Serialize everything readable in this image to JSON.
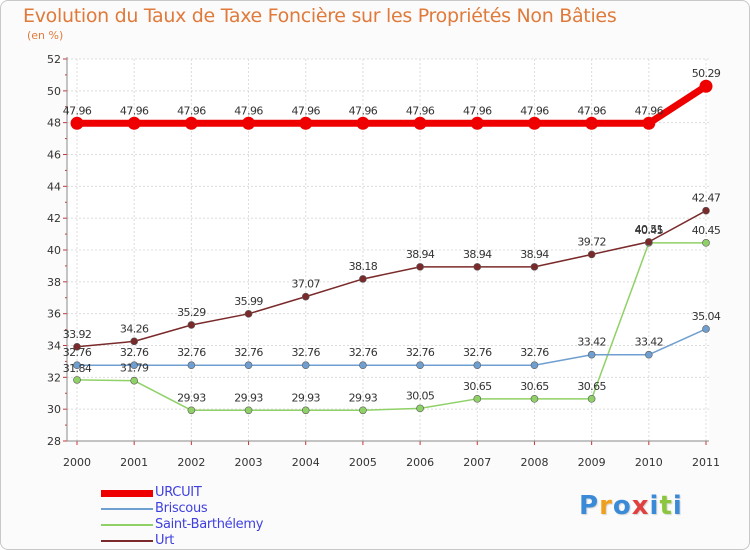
{
  "chart_data": {
    "type": "line",
    "title": "Evolution du Taux de Taxe Foncière sur les Propriétés Non Bâties",
    "ylabel": "(en %)",
    "xlabel": "",
    "categories": [
      "2000",
      "2001",
      "2002",
      "2003",
      "2004",
      "2005",
      "2006",
      "2007",
      "2008",
      "2009",
      "2010",
      "2011"
    ],
    "ylim": [
      28,
      52
    ],
    "yticks": [
      "28",
      "30",
      "32",
      "34",
      "36",
      "38",
      "40",
      "42",
      "44",
      "46",
      "48",
      "50",
      "52"
    ],
    "series": [
      {
        "name": "URCUIT",
        "color": "#ee0000",
        "values": [
          47.96,
          47.96,
          47.96,
          47.96,
          47.96,
          47.96,
          47.96,
          47.96,
          47.96,
          47.96,
          47.96,
          50.29
        ],
        "labels": [
          "47.96",
          "47.96",
          "47.96",
          "47.96",
          "47.96",
          "47.96",
          "47.96",
          "47.96",
          "47.96",
          "47.96",
          "47.96",
          "50.29"
        ]
      },
      {
        "name": "Briscous",
        "color": "#6f9fd0",
        "values": [
          32.76,
          32.76,
          32.76,
          32.76,
          32.76,
          32.76,
          32.76,
          32.76,
          32.76,
          33.42,
          33.42,
          35.04
        ],
        "labels": [
          "32.76",
          "32.76",
          "32.76",
          "32.76",
          "32.76",
          "32.76",
          "32.76",
          "32.76",
          "32.76",
          "33.42",
          "33.42",
          "35.04"
        ]
      },
      {
        "name": "Saint-Barthélemy",
        "color": "#8fd166",
        "values": [
          31.84,
          31.79,
          29.93,
          29.93,
          29.93,
          29.93,
          30.05,
          30.65,
          30.65,
          30.65,
          40.45,
          40.45
        ],
        "labels": [
          "31.84",
          "31.79",
          "29.93",
          "29.93",
          "29.93",
          "29.93",
          "30.05",
          "30.65",
          "30.65",
          "30.65",
          "40.45",
          "40.45"
        ]
      },
      {
        "name": "Urt",
        "color": "#7a2a2a",
        "values": [
          33.92,
          34.26,
          35.29,
          35.99,
          37.07,
          38.18,
          38.94,
          38.94,
          38.94,
          39.72,
          40.51,
          42.47
        ],
        "labels": [
          "33.92",
          "34.26",
          "35.29",
          "35.99",
          "37.07",
          "38.18",
          "38.94",
          "38.94",
          "38.94",
          "39.72",
          "40.51",
          "42.47"
        ]
      }
    ],
    "grid": true,
    "legend": "bottom-left"
  },
  "logo": {
    "letters": [
      "P",
      "r",
      "o",
      "x",
      "i",
      "t",
      "i"
    ],
    "colors": [
      "#3a8ad8",
      "#f0a020",
      "#3a8ad8",
      "#e04040",
      "#3a8ad8",
      "#8cc63f",
      "#3a8ad8"
    ]
  }
}
